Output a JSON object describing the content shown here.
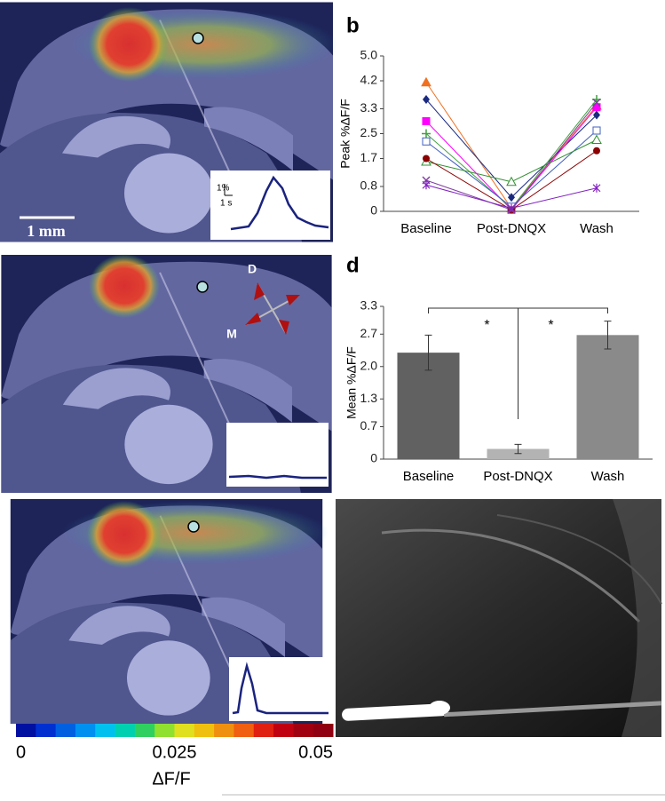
{
  "panels": {
    "b": "b",
    "d": "d"
  },
  "images": {
    "scale_bar": "1 mm",
    "trace_scale_y": "1%",
    "trace_scale_x": "1 s",
    "dir_d": "D",
    "dir_m": "M"
  },
  "colorbar": {
    "lim": [
      0,
      0.05
    ],
    "ticks": [
      0,
      0.025,
      0.05
    ],
    "label": "ΔF/F",
    "colors": [
      "#0010a0",
      "#0030d0",
      "#0060e0",
      "#0090f0",
      "#00c0f0",
      "#00d0b0",
      "#30d060",
      "#90e030",
      "#e0e020",
      "#f0c010",
      "#f09010",
      "#f06010",
      "#e02010",
      "#c00010",
      "#a00010",
      "#900010"
    ]
  },
  "chart_data": [
    {
      "type": "line",
      "ylabel": "Peak %ΔF/F",
      "categories": [
        "Baseline",
        "Post-DNQX",
        "Wash"
      ],
      "ylim": [
        0,
        5
      ],
      "yticks": [
        0,
        0.8,
        1.7,
        2.5,
        3.3,
        {
          "value": 4.2,
          "label": "4.2"
        },
        {
          "value": 5,
          "label": "5.0"
        }
      ],
      "series": [
        {
          "color": "#f07020",
          "marker": "triangle",
          "values": [
            4.15,
            0.1,
            3.4
          ]
        },
        {
          "color": "#1a2a80",
          "marker": "diamond",
          "values": [
            3.6,
            0.45,
            3.1
          ]
        },
        {
          "color": "#ff00ff",
          "marker": "square",
          "values": [
            2.9,
            0.05,
            3.35
          ]
        },
        {
          "color": "#40a040",
          "marker": "plus",
          "values": [
            2.5,
            0.1,
            3.6
          ]
        },
        {
          "color": "#4060c0",
          "marker": "open-square",
          "values": [
            2.25,
            0.15,
            2.6
          ]
        },
        {
          "color": "#309030",
          "marker": "open-triangle",
          "values": [
            1.6,
            0.95,
            2.3
          ]
        },
        {
          "color": "#8b0000",
          "marker": "circle",
          "values": [
            1.7,
            0.05,
            1.95
          ]
        },
        {
          "color": "#8040a0",
          "marker": "cross",
          "values": [
            1.0,
            0.05,
            3.5
          ]
        },
        {
          "color": "#8020c0",
          "marker": "star",
          "values": [
            0.85,
            0.1,
            0.75
          ]
        }
      ]
    },
    {
      "type": "bar",
      "ylabel": "Mean %ΔF/F",
      "categories": [
        "Baseline",
        "Post-DNQX",
        "Wash"
      ],
      "values": [
        2.3,
        0.22,
        2.68
      ],
      "errors": [
        0.38,
        0.1,
        0.3
      ],
      "colors": [
        "#616161",
        "#b3b3b3",
        "#8a8a8a"
      ],
      "ylim": [
        0,
        3.3
      ],
      "yticks": [
        0,
        0.7,
        1.3,
        {
          "value": 2,
          "label": "2.0"
        },
        2.7,
        3.3
      ],
      "annotations": [
        "*",
        "*"
      ]
    }
  ]
}
